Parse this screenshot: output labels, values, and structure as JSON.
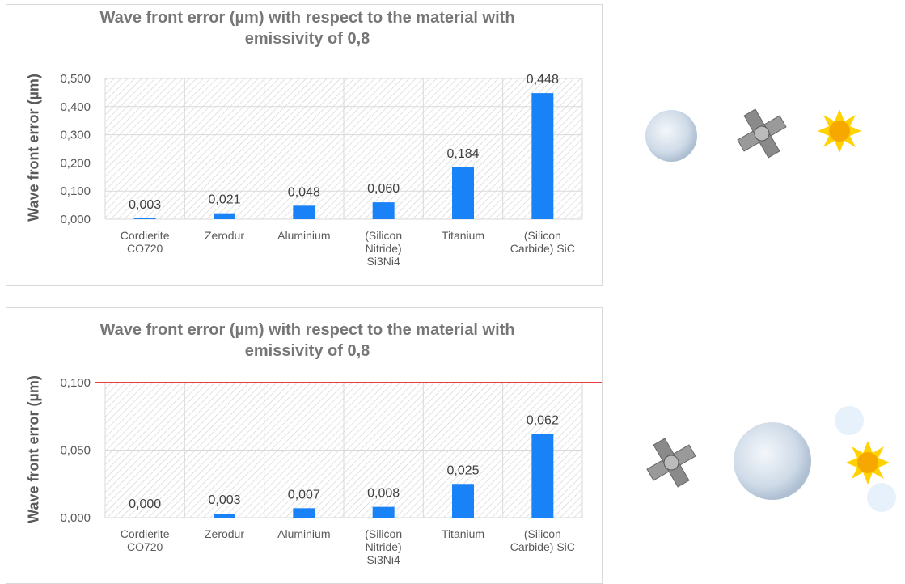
{
  "chart_data": [
    {
      "type": "bar",
      "title": "Wave front error (µm) with respect to the material with emissivity of 0,8",
      "y_label": "Wave front error (µm)",
      "categories": [
        "Cordierite CO720",
        "Zerodur",
        "Aluminium",
        "(Silicon Nitride) Si3Ni4",
        "Titanium",
        "(Silicon Carbide) SiC"
      ],
      "values": [
        0.003,
        0.021,
        0.048,
        0.06,
        0.184,
        0.448
      ],
      "value_labels": [
        "0,003",
        "0,021",
        "0,048",
        "0,060",
        "0,184",
        "0,448"
      ],
      "color": "#1a82f7",
      "ylim": [
        0,
        0.5
      ],
      "yticks": [
        {
          "value": 0,
          "label": "0,000"
        },
        {
          "value": 0.1,
          "label": "0,100"
        },
        {
          "value": 0.2,
          "label": "0,200"
        },
        {
          "value": 0.3,
          "label": "0,300"
        },
        {
          "value": 0.4,
          "label": "0,400"
        },
        {
          "value": 0.5,
          "label": "0,500"
        }
      ],
      "grid": true
    },
    {
      "type": "bar",
      "title": "Wave front error (µm) with respect to the material with emissivity of 0,8",
      "y_label": "Wave front error (µm)",
      "categories": [
        "Cordierite CO720",
        "Zerodur",
        "Aluminium",
        "(Silicon Nitride) Si3Ni4",
        "Titanium",
        "(Silicon Carbide) SiC"
      ],
      "values": [
        0.0,
        0.003,
        0.007,
        0.008,
        0.025,
        0.062
      ],
      "value_labels": [
        "0,000",
        "0,003",
        "0,007",
        "0,008",
        "0,025",
        "0,062"
      ],
      "color": "#1a82f7",
      "ylim": [
        0,
        0.1
      ],
      "yticks": [
        {
          "value": 0,
          "label": "0,000"
        },
        {
          "value": 0.05,
          "label": "0,050"
        },
        {
          "value": 0.1,
          "label": "0,100"
        }
      ],
      "grid": true,
      "threshold": 0.1,
      "threshold_color": "#e00000"
    }
  ]
}
